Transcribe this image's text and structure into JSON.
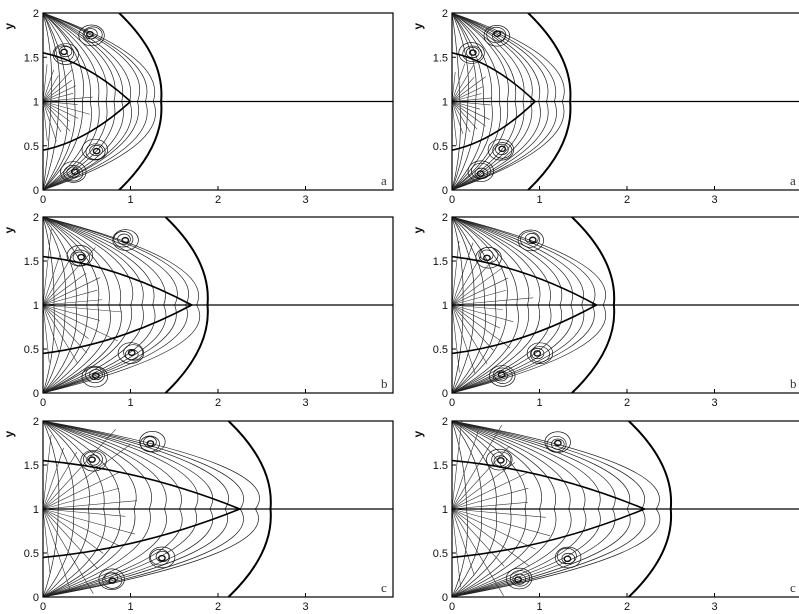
{
  "chart_data": {
    "type": "contour",
    "x_axis": {
      "range": [
        0,
        4
      ],
      "tick_labels": [
        "0",
        "1",
        "2",
        "3"
      ]
    },
    "y_axis": {
      "label": "y",
      "range": [
        0,
        2
      ],
      "tick_labels": [
        "0",
        "0.5",
        "1",
        "1.5",
        "2"
      ]
    },
    "panels": [
      {
        "row": 0,
        "col": 0,
        "label": "a",
        "shock_front_x": 1.35,
        "jet_tip_x": 1.0
      },
      {
        "row": 0,
        "col": 1,
        "label": "a",
        "shock_front_x": 1.35,
        "jet_tip_x": 0.95
      },
      {
        "row": 1,
        "col": 0,
        "label": "b",
        "shock_front_x": 1.88,
        "jet_tip_x": 1.7
      },
      {
        "row": 1,
        "col": 1,
        "label": "b",
        "shock_front_x": 1.85,
        "jet_tip_x": 1.65
      },
      {
        "row": 2,
        "col": 0,
        "label": "c",
        "shock_front_x": 2.6,
        "jet_tip_x": 2.25
      },
      {
        "row": 2,
        "col": 1,
        "label": "c",
        "shock_front_x": 2.5,
        "jet_tip_x": 2.2
      }
    ]
  }
}
